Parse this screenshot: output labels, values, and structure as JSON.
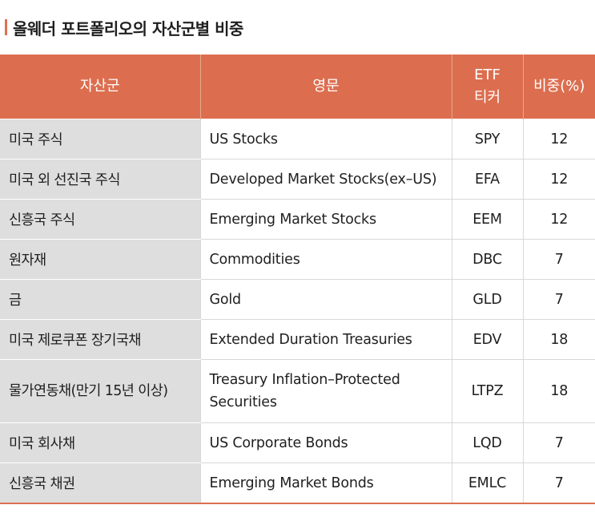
{
  "header": {
    "title": "올웨더 포트폴리오의 자산군별 비중"
  },
  "colors": {
    "accent": "#dc6e4f",
    "label_bg": "#dedede"
  },
  "table": {
    "headers": {
      "asset_class": "자산군",
      "english": "영문",
      "etf_line1": "ETF",
      "etf_line2": "티커",
      "weight": "비중(%)"
    },
    "rows": [
      {
        "asset_class": "미국 주식",
        "english": "US Stocks",
        "ticker": "SPY",
        "weight": "12"
      },
      {
        "asset_class": "미국 외 선진국 주식",
        "english": "Developed Market Stocks(ex–US)",
        "ticker": "EFA",
        "weight": "12"
      },
      {
        "asset_class": "신흥국 주식",
        "english": "Emerging Market Stocks",
        "ticker": "EEM",
        "weight": "12"
      },
      {
        "asset_class": "원자재",
        "english": "Commodities",
        "ticker": "DBC",
        "weight": "7"
      },
      {
        "asset_class": "금",
        "english": "Gold",
        "ticker": "GLD",
        "weight": "7"
      },
      {
        "asset_class": "미국 제로쿠폰 장기국채",
        "english": "Extended Duration Treasuries",
        "ticker": "EDV",
        "weight": "18"
      },
      {
        "asset_class": "물가연동채(만기 15년 이상)",
        "english": "Treasury Inflation–Protected",
        "english_line2": "Securities",
        "ticker": "LTPZ",
        "weight": "18"
      },
      {
        "asset_class": "미국 회사채",
        "english": "US Corporate Bonds",
        "ticker": "LQD",
        "weight": "7"
      },
      {
        "asset_class": "신흥국 채권",
        "english": "Emerging Market Bonds",
        "ticker": "EMLC",
        "weight": "7"
      }
    ]
  }
}
